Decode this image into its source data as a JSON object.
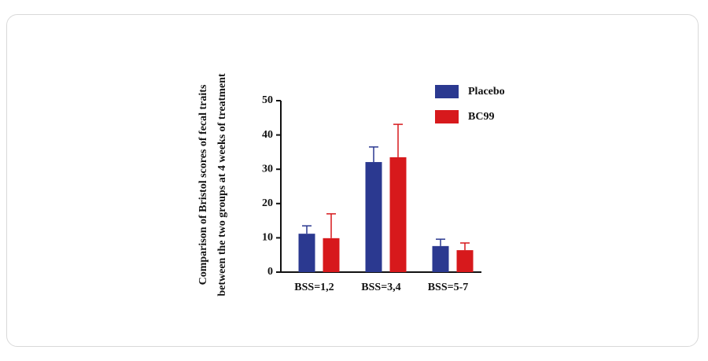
{
  "chart_data": {
    "type": "bar",
    "ylabel": [
      "Comparison of Bristol scores of fecal traits",
      "between the two groups at 4 weeks of treatment"
    ],
    "categories": [
      "BSS=1,2",
      "BSS=3,4",
      "BSS=5-7"
    ],
    "series": [
      {
        "name": "Placebo",
        "color": "#2b3990",
        "values": [
          11.2,
          32.1,
          7.6
        ],
        "errors": [
          2.3,
          4.4,
          2.0
        ]
      },
      {
        "name": "BC99",
        "color": "#d7191c",
        "values": [
          9.9,
          33.5,
          6.4
        ],
        "errors": [
          7.1,
          9.6,
          2.1
        ]
      }
    ],
    "ylim": [
      0,
      50
    ],
    "yticks": [
      0,
      10,
      20,
      30,
      40,
      50
    ],
    "legend": "upper-right"
  }
}
